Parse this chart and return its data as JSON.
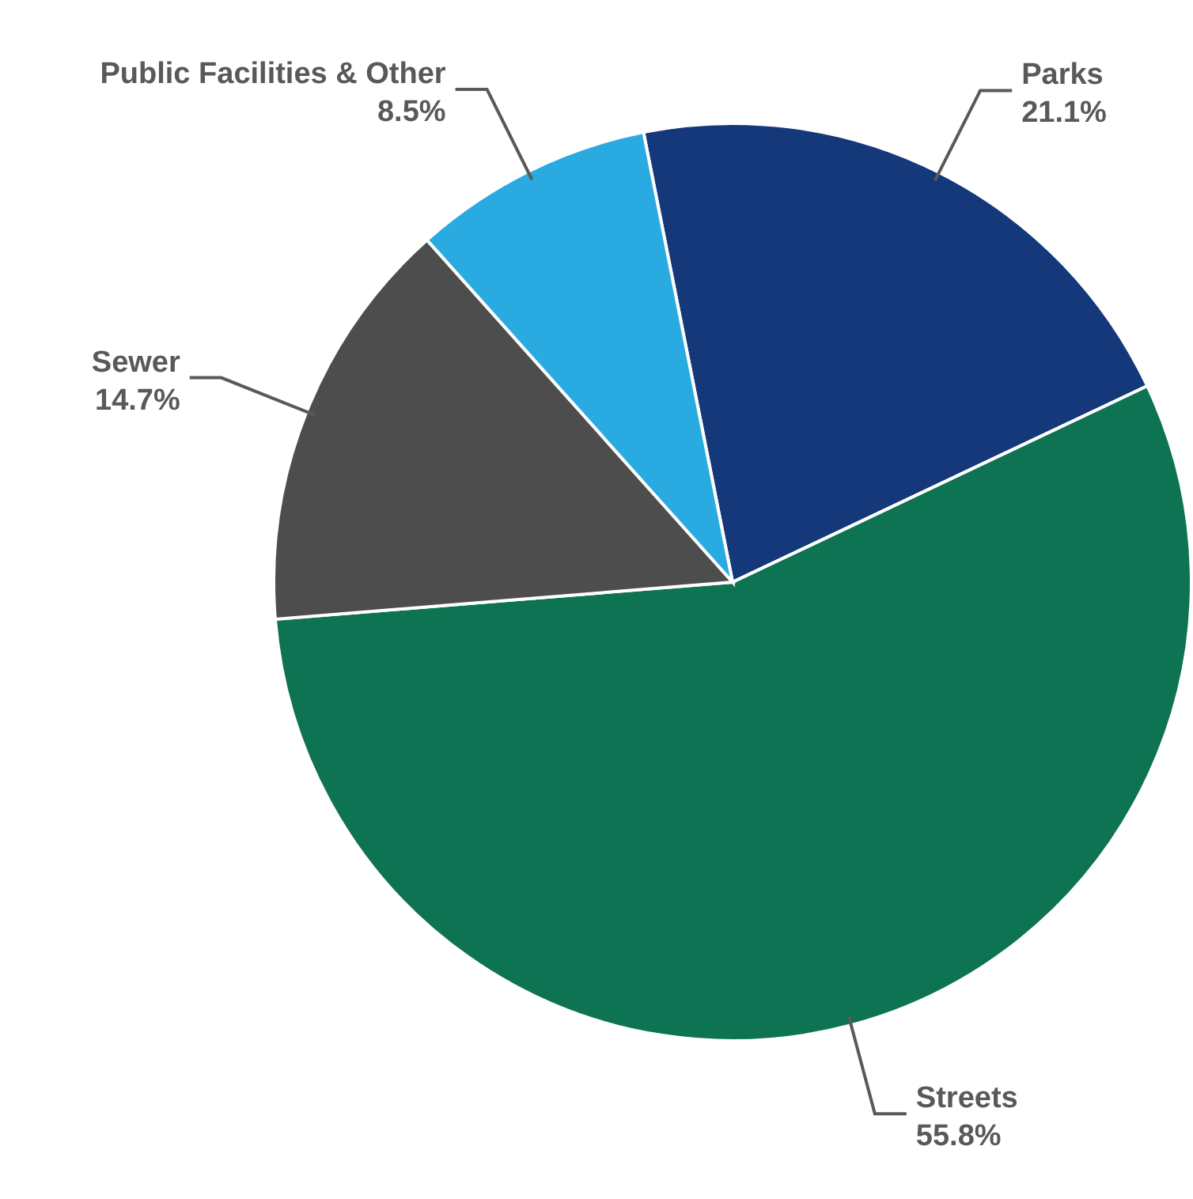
{
  "chart_data": {
    "type": "pie",
    "categories": [
      "Parks",
      "Streets",
      "Sewer",
      "Public Facilities & Other"
    ],
    "values": [
      21.1,
      55.8,
      14.7,
      8.5
    ],
    "colors": [
      "#14387a",
      "#0e7352",
      "#4d4d4d",
      "#29abe2"
    ],
    "value_labels": [
      "21.1%",
      "55.8%",
      "14.7%",
      "8.5%"
    ]
  }
}
